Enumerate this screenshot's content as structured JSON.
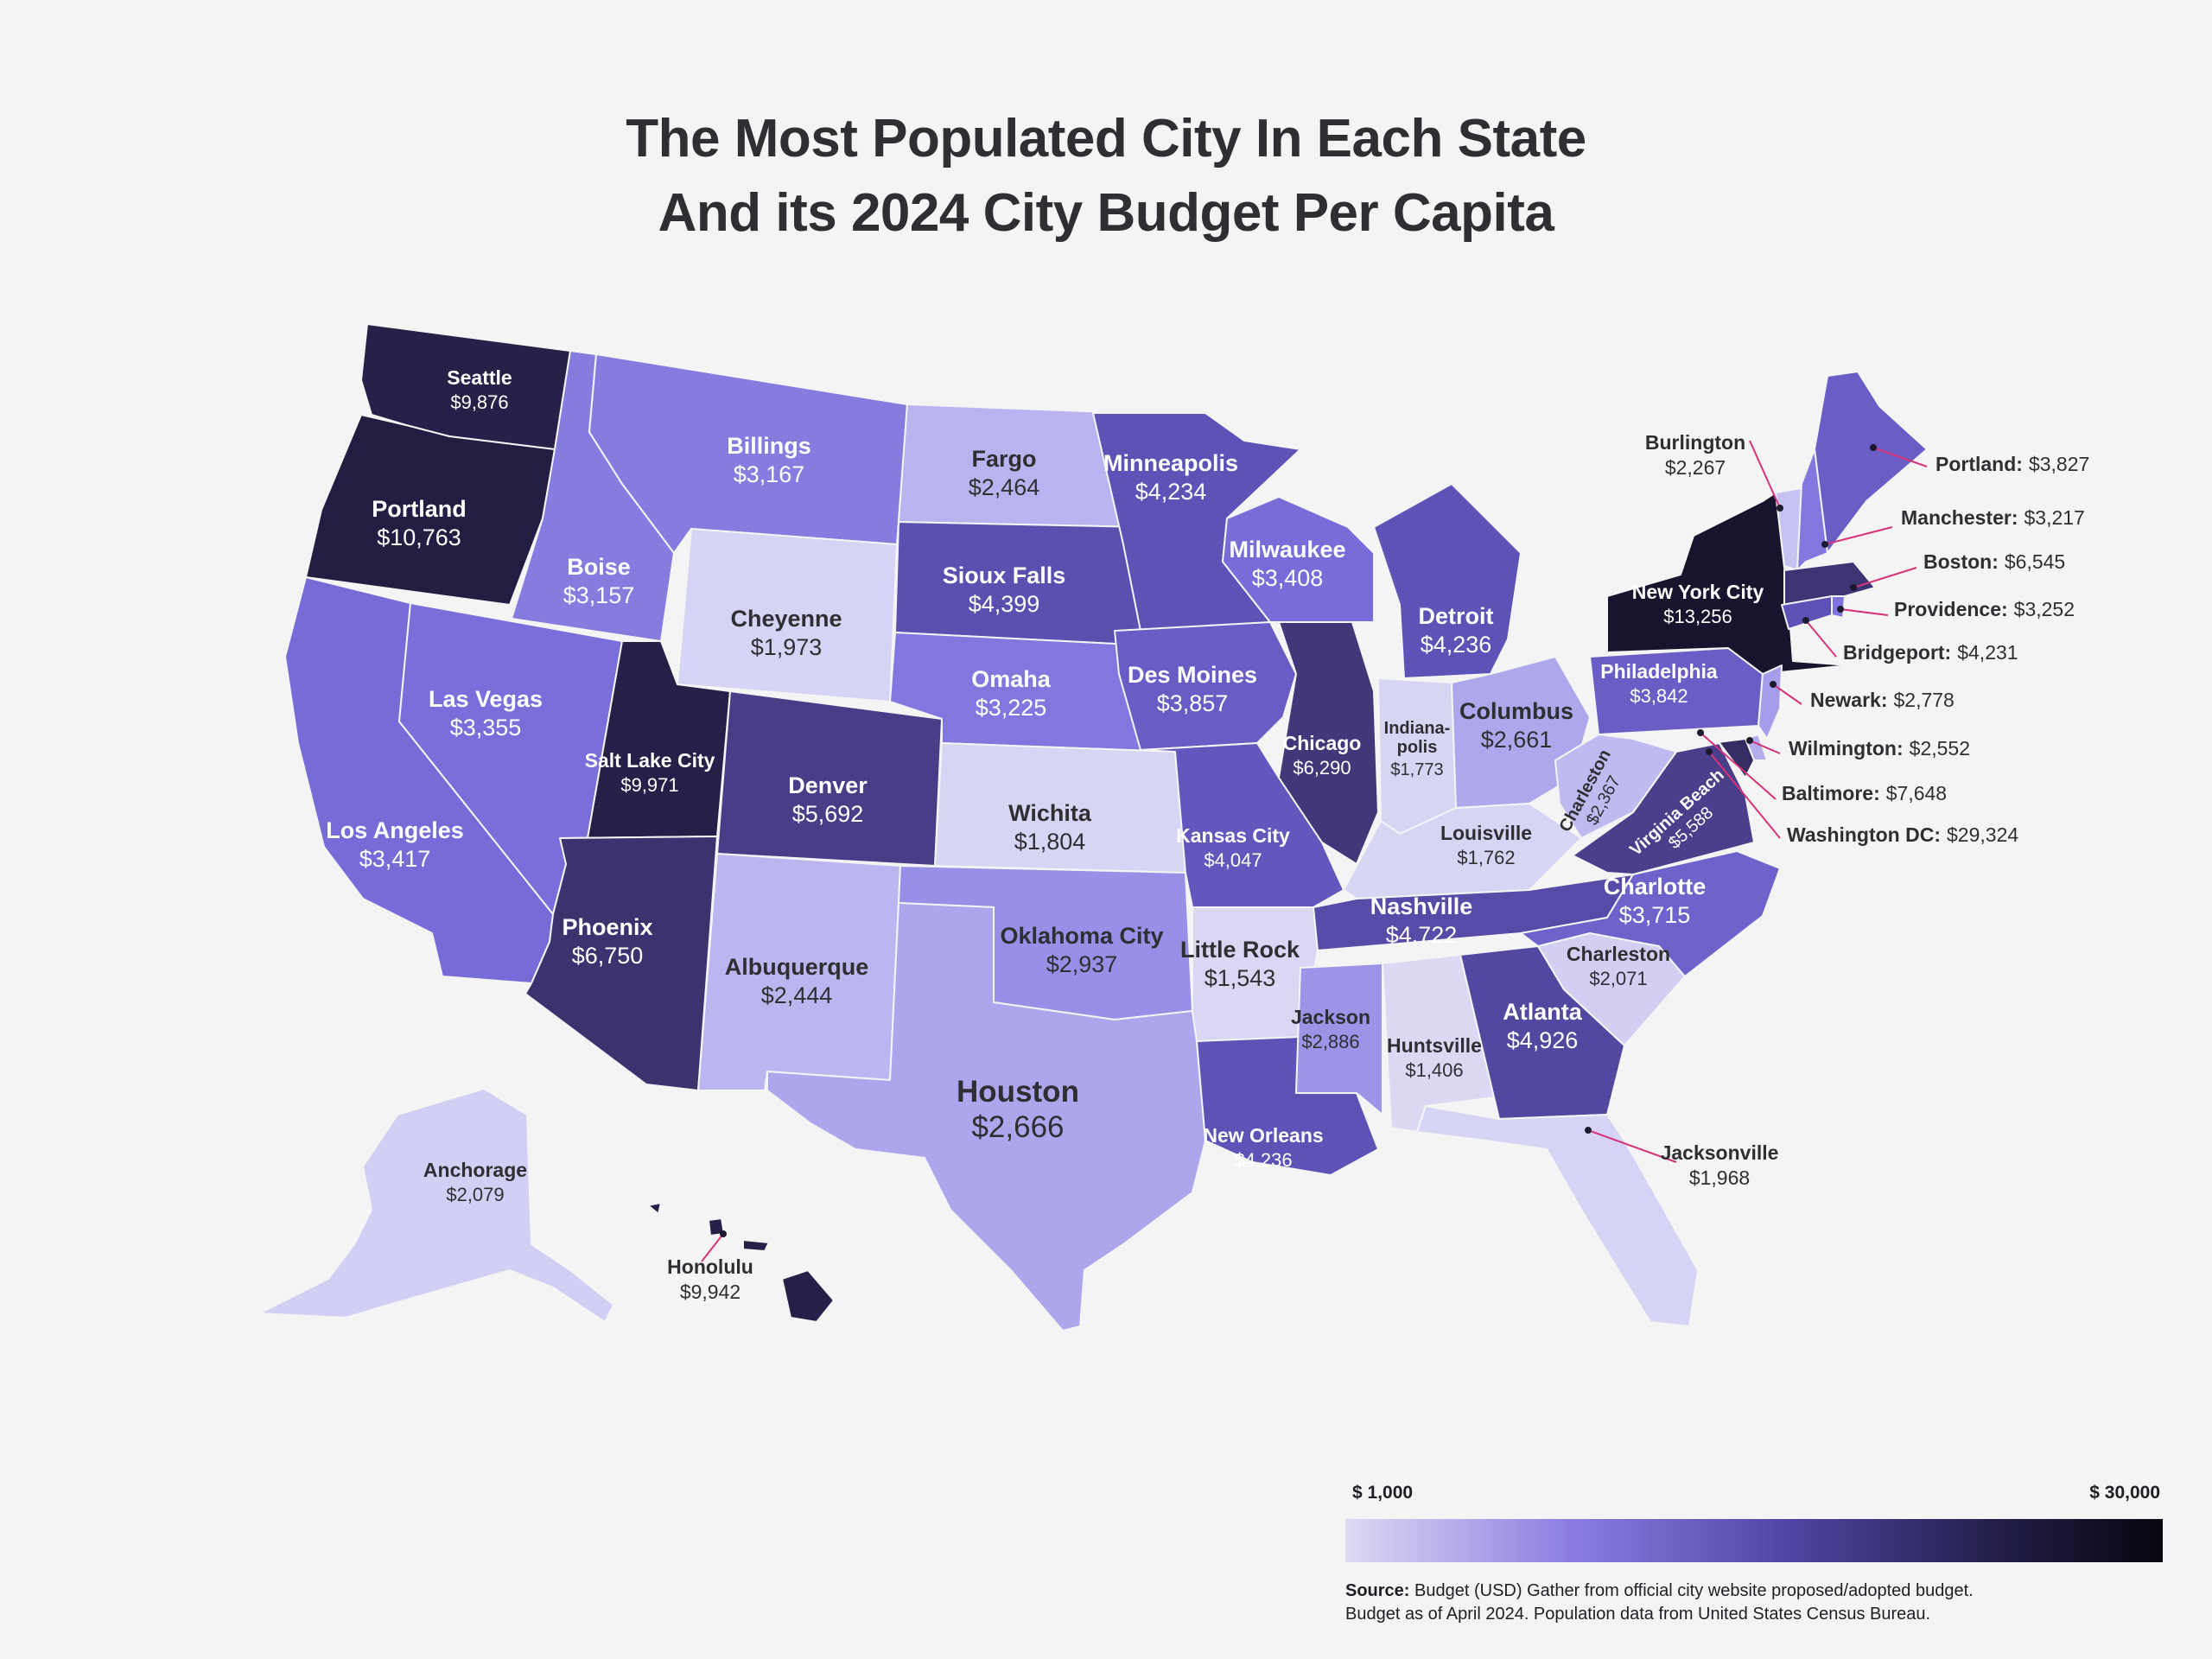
{
  "title": {
    "line1": "The Most Populated City In Each State",
    "line2": "And its 2024 City Budget Per Capita"
  },
  "colors": {
    "background": "#f4f4f4",
    "scale_low": "#dcdaf3",
    "scale_mid": "#7b70dc",
    "scale_high": "#07060f",
    "leader_line": "#d6337a"
  },
  "legend": {
    "min_label": "$ 1,000",
    "max_label": "$ 30,000",
    "min_value": 1000,
    "max_value": 30000
  },
  "source": {
    "bold": "Source:",
    "line1": "Budget (USD) Gather from official city website proposed/adopted budget.",
    "line2": "Budget as of April 2024. Population data from  United States Census Bureau."
  },
  "cities": [
    {
      "state": "WA",
      "city": "Seattle",
      "budget": "$9,876",
      "value": 9876
    },
    {
      "state": "OR",
      "city": "Portland",
      "budget": "$10,763",
      "value": 10763
    },
    {
      "state": "CA",
      "city": "Los Angeles",
      "budget": "$3,417",
      "value": 3417
    },
    {
      "state": "NV",
      "city": "Las Vegas",
      "budget": "$3,355",
      "value": 3355
    },
    {
      "state": "ID",
      "city": "Boise",
      "budget": "$3,157",
      "value": 3157
    },
    {
      "state": "MT",
      "city": "Billings",
      "budget": "$3,167",
      "value": 3167
    },
    {
      "state": "WY",
      "city": "Cheyenne",
      "budget": "$1,973",
      "value": 1973
    },
    {
      "state": "UT",
      "city": "Salt Lake City",
      "budget": "$9,971",
      "value": 9971
    },
    {
      "state": "AZ",
      "city": "Phoenix",
      "budget": "$6,750",
      "value": 6750
    },
    {
      "state": "CO",
      "city": "Denver",
      "budget": "$5,692",
      "value": 5692
    },
    {
      "state": "NM",
      "city": "Albuquerque",
      "budget": "$2,444",
      "value": 2444
    },
    {
      "state": "ND",
      "city": "Fargo",
      "budget": "$2,464",
      "value": 2464
    },
    {
      "state": "SD",
      "city": "Sioux Falls",
      "budget": "$4,399",
      "value": 4399
    },
    {
      "state": "NE",
      "city": "Omaha",
      "budget": "$3,225",
      "value": 3225
    },
    {
      "state": "KS",
      "city": "Wichita",
      "budget": "$1,804",
      "value": 1804
    },
    {
      "state": "OK",
      "city": "Oklahoma City",
      "budget": "$2,937",
      "value": 2937
    },
    {
      "state": "TX",
      "city": "Houston",
      "budget": "$2,666",
      "value": 2666
    },
    {
      "state": "MN",
      "city": "Minneapolis",
      "budget": "$4,234",
      "value": 4234
    },
    {
      "state": "IA",
      "city": "Des Moines",
      "budget": "$3,857",
      "value": 3857
    },
    {
      "state": "MO",
      "city": "Kansas City",
      "budget": "$4,047",
      "value": 4047
    },
    {
      "state": "AR",
      "city": "Little Rock",
      "budget": "$1,543",
      "value": 1543
    },
    {
      "state": "LA",
      "city": "New Orleans",
      "budget": "$4,236",
      "value": 4236
    },
    {
      "state": "WI",
      "city": "Milwaukee",
      "budget": "$3,408",
      "value": 3408
    },
    {
      "state": "IL",
      "city": "Chicago",
      "budget": "$6,290",
      "value": 6290
    },
    {
      "state": "MI",
      "city": "Detroit",
      "budget": "$4,236",
      "value": 4236
    },
    {
      "state": "IN",
      "city": "Indiana-polis",
      "budget": "$1,773",
      "value": 1773
    },
    {
      "state": "OH",
      "city": "Columbus",
      "budget": "$2,661",
      "value": 2661
    },
    {
      "state": "KY",
      "city": "Louisville",
      "budget": "$1,762",
      "value": 1762
    },
    {
      "state": "TN",
      "city": "Nashville",
      "budget": "$4,722",
      "value": 4722
    },
    {
      "state": "MS",
      "city": "Jackson",
      "budget": "$2,886",
      "value": 2886
    },
    {
      "state": "AL",
      "city": "Huntsville",
      "budget": "$1,406",
      "value": 1406
    },
    {
      "state": "GA",
      "city": "Atlanta",
      "budget": "$4,926",
      "value": 4926
    },
    {
      "state": "FL",
      "city": "Jacksonville",
      "budget": "$1,968",
      "value": 1968
    },
    {
      "state": "SC",
      "city": "Charleston",
      "budget": "$2,071",
      "value": 2071
    },
    {
      "state": "NC",
      "city": "Charlotte",
      "budget": "$3,715",
      "value": 3715
    },
    {
      "state": "VA",
      "city": "Virginia Beach",
      "budget": "$5,588",
      "value": 5588
    },
    {
      "state": "WV",
      "city": "Charleston",
      "budget": "$2,367",
      "value": 2367
    },
    {
      "state": "PA",
      "city": "Philadelphia",
      "budget": "$3,842",
      "value": 3842
    },
    {
      "state": "NY",
      "city": "New York City",
      "budget": "$13,256",
      "value": 13256
    },
    {
      "state": "VT",
      "city": "Burlington",
      "budget": "$2,267",
      "value": 2267
    },
    {
      "state": "ME",
      "city": "Portland:",
      "budget": "$3,827",
      "value": 3827
    },
    {
      "state": "NH",
      "city": "Manchester:",
      "budget": "$3,217",
      "value": 3217
    },
    {
      "state": "MA",
      "city": "Boston:",
      "budget": "$6,545",
      "value": 6545
    },
    {
      "state": "RI",
      "city": "Providence:",
      "budget": "$3,252",
      "value": 3252
    },
    {
      "state": "CT",
      "city": "Bridgeport:",
      "budget": "$4,231",
      "value": 4231
    },
    {
      "state": "NJ",
      "city": "Newark:",
      "budget": "$2,778",
      "value": 2778
    },
    {
      "state": "DE",
      "city": "Wilmington:",
      "budget": "$2,552",
      "value": 2552
    },
    {
      "state": "MD",
      "city": "Baltimore:",
      "budget": "$7,648",
      "value": 7648
    },
    {
      "state": "DC",
      "city": "Washington DC:",
      "budget": "$29,324",
      "value": 29324
    },
    {
      "state": "AK",
      "city": "Anchorage",
      "budget": "$2,079",
      "value": 2079
    },
    {
      "state": "HI",
      "city": "Honolulu",
      "budget": "$9,942",
      "value": 9942
    }
  ]
}
